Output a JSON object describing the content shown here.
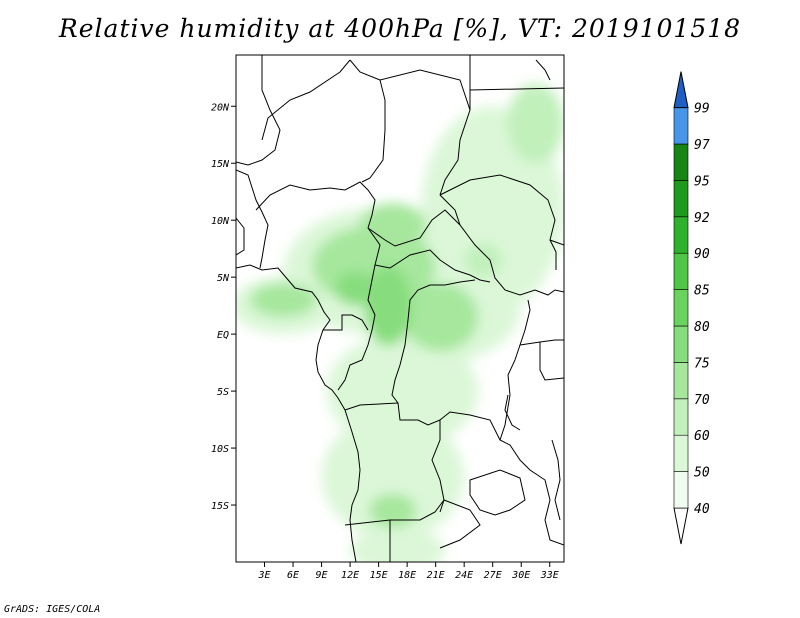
{
  "title": "Relative humidity at 400hPa [%], VT: 2019101518",
  "credit": "GrADS: IGES/COLA",
  "map": {
    "lat_range": [
      -20,
      24.5
    ],
    "lon_range": [
      0,
      34.5
    ],
    "lat_ticks": [
      {
        "value": 20,
        "label": "20N"
      },
      {
        "value": 15,
        "label": "15N"
      },
      {
        "value": 10,
        "label": "10N"
      },
      {
        "value": 5,
        "label": "5N"
      },
      {
        "value": 0,
        "label": "EQ"
      },
      {
        "value": -5,
        "label": "5S"
      },
      {
        "value": -10,
        "label": "10S"
      },
      {
        "value": -15,
        "label": "15S"
      }
    ],
    "lon_ticks": [
      {
        "value": 3,
        "label": "3E"
      },
      {
        "value": 6,
        "label": "6E"
      },
      {
        "value": 9,
        "label": "9E"
      },
      {
        "value": 12,
        "label": "12E"
      },
      {
        "value": 15,
        "label": "15E"
      },
      {
        "value": 18,
        "label": "18E"
      },
      {
        "value": 21,
        "label": "21E"
      },
      {
        "value": 24,
        "label": "24E"
      },
      {
        "value": 27,
        "label": "27E"
      },
      {
        "value": 30,
        "label": "30E"
      },
      {
        "value": 33,
        "label": "33E"
      }
    ],
    "humidity_patches": [
      {
        "lon": 14.5,
        "lat": 5.5,
        "rlon": 9.5,
        "rlat": 5.5,
        "level": 0
      },
      {
        "lon": 5.0,
        "lat": 2.5,
        "rlon": 5.5,
        "rlat": 2.5,
        "level": 0
      },
      {
        "lon": 21.5,
        "lat": 2.5,
        "rlon": 8.5,
        "rlat": 5.0,
        "level": 0
      },
      {
        "lon": 27.0,
        "lat": 11.0,
        "rlon": 7.5,
        "rlat": 9.0,
        "level": 0
      },
      {
        "lon": 17.5,
        "lat": -5.0,
        "rlon": 8.0,
        "rlat": 5.0,
        "level": 0
      },
      {
        "lon": 16.5,
        "lat": -12.5,
        "rlon": 7.5,
        "rlat": 5.5,
        "level": 0
      },
      {
        "lon": 17.0,
        "lat": -19.0,
        "rlon": 5.0,
        "rlat": 2.0,
        "level": 0
      },
      {
        "lon": 31.5,
        "lat": 18.5,
        "rlon": 3.0,
        "rlat": 3.5,
        "level": 1
      },
      {
        "lon": 14.5,
        "lat": 6.0,
        "rlon": 6.5,
        "rlat": 3.5,
        "level": 2
      },
      {
        "lon": 16.5,
        "lat": 9.5,
        "rlon": 3.5,
        "rlat": 2.0,
        "level": 2
      },
      {
        "lon": 5.0,
        "lat": 3.0,
        "rlon": 3.5,
        "rlat": 1.5,
        "level": 2
      },
      {
        "lon": 21.5,
        "lat": 1.5,
        "rlon": 4.0,
        "rlat": 3.0,
        "level": 2
      },
      {
        "lon": 16.0,
        "lat": 2.5,
        "rlon": 2.5,
        "rlat": 3.5,
        "level": 3
      },
      {
        "lon": 12.5,
        "lat": 4.0,
        "rlon": 2.0,
        "rlat": 1.5,
        "level": 3
      },
      {
        "lon": 16.5,
        "lat": -15.5,
        "rlon": 2.5,
        "rlat": 1.5,
        "level": 2
      },
      {
        "lon": 26.0,
        "lat": 6.5,
        "rlon": 2.0,
        "rlat": 1.5,
        "level": 1
      }
    ]
  },
  "colorbar": {
    "levels": [
      {
        "label": "40",
        "color": "#f0fcef"
      },
      {
        "label": "50",
        "color": "#dcf7d8"
      },
      {
        "label": "60",
        "color": "#c1f0bb"
      },
      {
        "label": "70",
        "color": "#a6e79d"
      },
      {
        "label": "75",
        "color": "#87dd7d"
      },
      {
        "label": "80",
        "color": "#69d35e"
      },
      {
        "label": "85",
        "color": "#4fc645"
      },
      {
        "label": "90",
        "color": "#2fb22b"
      },
      {
        "label": "92",
        "color": "#1e9a1c"
      },
      {
        "label": "95",
        "color": "#168514"
      },
      {
        "label": "97",
        "color": "#4796e8"
      },
      {
        "label": "99",
        "color": "#2e76d6"
      }
    ],
    "top_color": "#1f5fc4"
  }
}
